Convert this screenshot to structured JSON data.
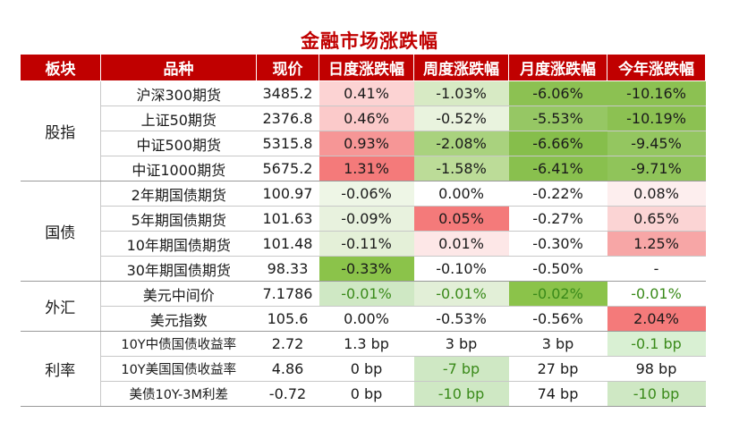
{
  "title": "金融市场涨跌幅",
  "headers": [
    "板块",
    "品种",
    "现价",
    "日度涨跌幅",
    "周度涨跌幅",
    "月度涨跌幅",
    "今年涨跌幅"
  ],
  "colors": {
    "header_bg": "#c00000",
    "title": "#c00000",
    "strong_green": "#8bc34a",
    "mid_green": "#b5d88a",
    "light_green": "#e2efd7",
    "pale_green": "#f1f8ec",
    "strong_red": "#f47a7a",
    "mid_red": "#f7a6a6",
    "light_red": "#fbd2d2",
    "pale_red": "#fde9e9",
    "green_text": "#3a8a1a"
  },
  "groups": [
    {
      "sector": "股指",
      "rows": [
        {
          "name": "沪深300期货",
          "price": "3485.2",
          "cells": [
            {
              "v": "0.41%",
              "bg": "#fcd3d3"
            },
            {
              "v": "-1.03%",
              "bg": "#d7eac4"
            },
            {
              "v": "-6.06%",
              "bg": "#8cc152"
            },
            {
              "v": "-10.16%",
              "bg": "#8cc152"
            }
          ]
        },
        {
          "name": "上证50期货",
          "price": "2376.8",
          "cells": [
            {
              "v": "0.46%",
              "bg": "#fbcaca"
            },
            {
              "v": "-0.52%",
              "bg": "#e9f3de"
            },
            {
              "v": "-5.53%",
              "bg": "#96c764"
            },
            {
              "v": "-10.19%",
              "bg": "#8cc152"
            }
          ]
        },
        {
          "name": "中证500期货",
          "price": "5315.8",
          "cells": [
            {
              "v": "0.93%",
              "bg": "#f69696"
            },
            {
              "v": "-2.08%",
              "bg": "#a9d27e"
            },
            {
              "v": "-6.66%",
              "bg": "#86be4b"
            },
            {
              "v": "-9.45%",
              "bg": "#94c660"
            }
          ]
        },
        {
          "name": "中证1000期货",
          "price": "5675.2",
          "cells": [
            {
              "v": "1.31%",
              "bg": "#f47a7a"
            },
            {
              "v": "-1.58%",
              "bg": "#bcdc98"
            },
            {
              "v": "-6.41%",
              "bg": "#89c04e"
            },
            {
              "v": "-9.71%",
              "bg": "#90c45a"
            }
          ]
        }
      ]
    },
    {
      "sector": "国债",
      "rows": [
        {
          "name": "2年期国债期货",
          "price": "100.97",
          "cells": [
            {
              "v": "-0.06%",
              "bg": "#eef6e6"
            },
            {
              "v": "0.00%",
              "bg": "#ffffff"
            },
            {
              "v": "-0.22%",
              "bg": "#ffffff"
            },
            {
              "v": "0.08%",
              "bg": "#fdeeee"
            }
          ]
        },
        {
          "name": "5年期国债期货",
          "price": "101.63",
          "cells": [
            {
              "v": "-0.09%",
              "bg": "#e8f2de"
            },
            {
              "v": "0.05%",
              "bg": "#f47a7a"
            },
            {
              "v": "-0.27%",
              "bg": "#ffffff"
            },
            {
              "v": "0.65%",
              "bg": "#fbd4d4"
            }
          ]
        },
        {
          "name": "10年期国债期货",
          "price": "101.48",
          "cells": [
            {
              "v": "-0.11%",
              "bg": "#e4f0d8"
            },
            {
              "v": "0.01%",
              "bg": "#fde7e7"
            },
            {
              "v": "-0.30%",
              "bg": "#ffffff"
            },
            {
              "v": "1.25%",
              "bg": "#f7a6a6"
            }
          ]
        },
        {
          "name": "30年期国债期货",
          "price": "98.33",
          "cells": [
            {
              "v": "-0.33%",
              "bg": "#8bc34a"
            },
            {
              "v": "-0.10%",
              "bg": "#ffffff"
            },
            {
              "v": "-0.50%",
              "bg": "#ffffff"
            },
            {
              "v": "-",
              "bg": "#ffffff"
            }
          ]
        }
      ]
    },
    {
      "sector": "外汇",
      "rows": [
        {
          "name": "美元中间价",
          "price": "7.1786",
          "cells": [
            {
              "v": "-0.01%",
              "bg": "#cfe8c4",
              "green": true
            },
            {
              "v": "-0.01%",
              "bg": "#e2efd7",
              "green": true
            },
            {
              "v": "-0.02%",
              "bg": "#8bc34a",
              "green": true
            },
            {
              "v": "-0.01%",
              "bg": "#ffffff",
              "green": true
            }
          ]
        },
        {
          "name": "美元指数",
          "price": "105.6",
          "cells": [
            {
              "v": "0.00%",
              "bg": "#ffffff"
            },
            {
              "v": "-0.53%",
              "bg": "#ffffff"
            },
            {
              "v": "-0.56%",
              "bg": "#ffffff"
            },
            {
              "v": "2.04%",
              "bg": "#f47a7a"
            }
          ]
        }
      ]
    },
    {
      "sector": "利率",
      "rows": [
        {
          "name": "10Y中债国债收益率",
          "price": "2.72",
          "cells": [
            {
              "v": "1.3 bp",
              "bg": "#ffffff"
            },
            {
              "v": "3 bp",
              "bg": "#ffffff"
            },
            {
              "v": "3 bp",
              "bg": "#ffffff"
            },
            {
              "v": "-0.1 bp",
              "bg": "#d9f0d3",
              "green": true
            }
          ]
        },
        {
          "name": "10Y美国国债收益率",
          "price": "4.86",
          "cells": [
            {
              "v": "0 bp",
              "bg": "#ffffff"
            },
            {
              "v": "-7 bp",
              "bg": "#cfe8c4",
              "green": true
            },
            {
              "v": "27 bp",
              "bg": "#ffffff"
            },
            {
              "v": "98 bp",
              "bg": "#ffffff"
            }
          ]
        },
        {
          "name": "美债10Y-3M利差",
          "price": "-0.72",
          "cells": [
            {
              "v": "0 bp",
              "bg": "#ffffff"
            },
            {
              "v": "-10 bp",
              "bg": "#cfe8c4",
              "green": true
            },
            {
              "v": "74 bp",
              "bg": "#ffffff"
            },
            {
              "v": "-10 bp",
              "bg": "#cfe8c4",
              "green": true
            }
          ]
        }
      ]
    }
  ]
}
